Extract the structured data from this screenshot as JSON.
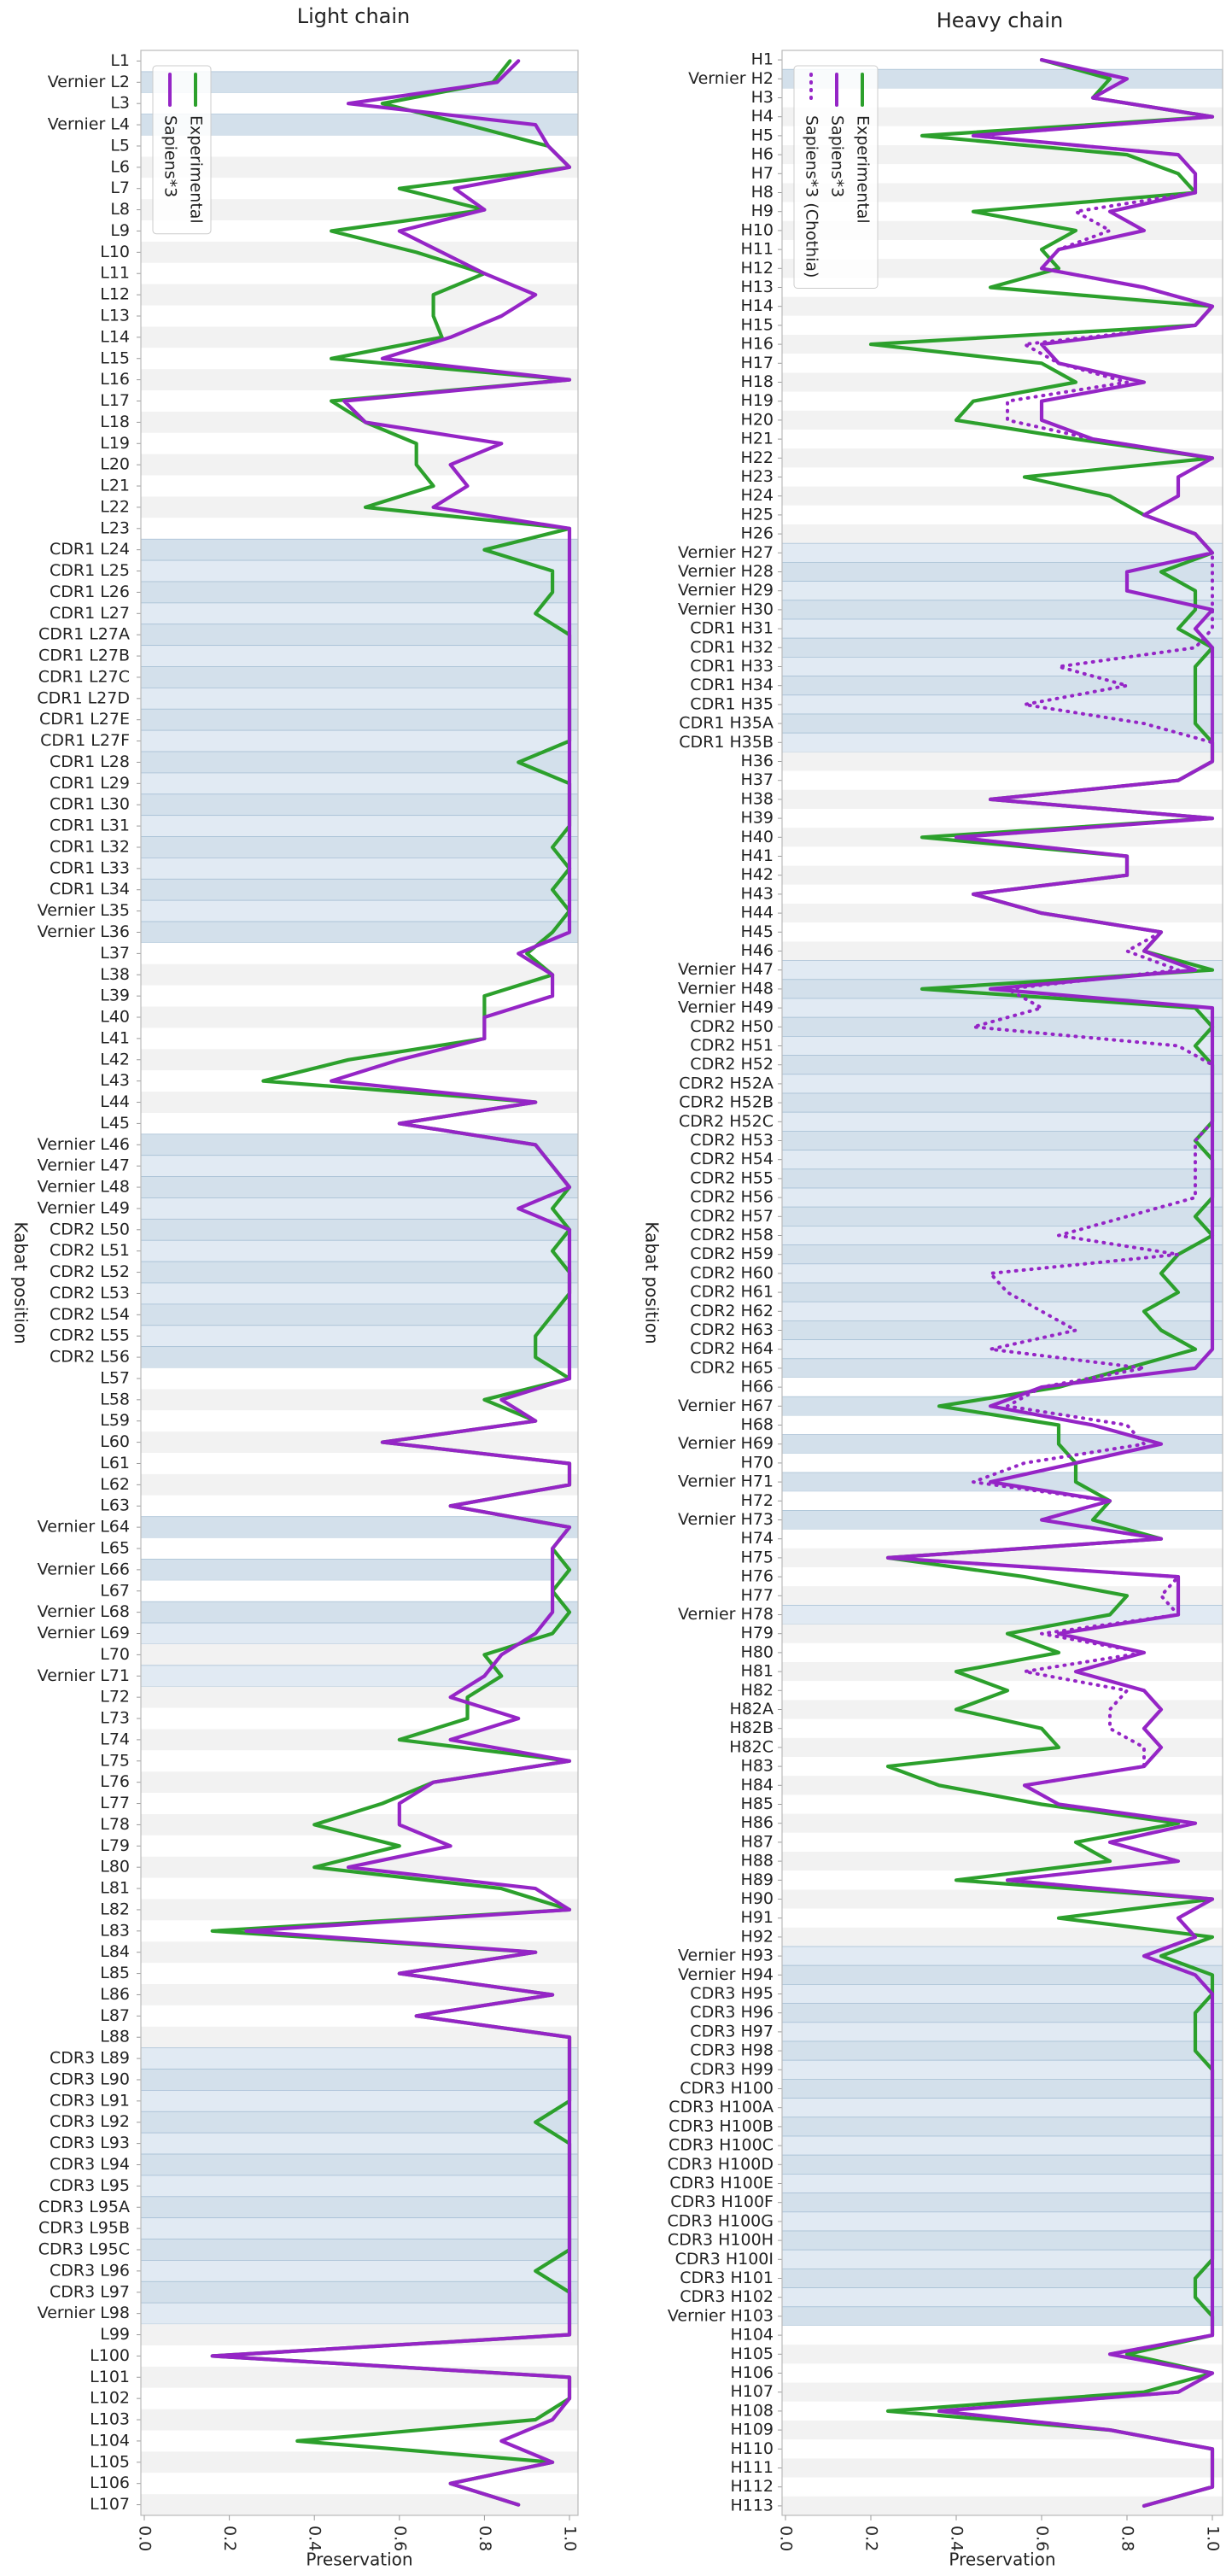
{
  "chart_data": [
    {
      "type": "line",
      "orientation": "horizontal",
      "title": "Light chain",
      "xlabel": "Preservation",
      "ylabel": "Kabat position",
      "xlim": [
        0,
        1
      ],
      "xticks": [
        {
          "value": 0,
          "label": "0.0"
        },
        0.2,
        0.4,
        0.6,
        0.8,
        {
          "value": 1,
          "label": "1.0"
        }
      ],
      "legend": "upper left",
      "categories": [
        "L1",
        "Vernier L2",
        "L3",
        "Vernier L4",
        "L5",
        "L6",
        "L7",
        "L8",
        "L9",
        "L10",
        "L11",
        "L12",
        "L13",
        "L14",
        "L15",
        "L16",
        "L17",
        "L18",
        "L19",
        "L20",
        "L21",
        "L22",
        "L23",
        "CDR1 L24",
        "CDR1 L25",
        "CDR1 L26",
        "CDR1 L27",
        "CDR1 L27A",
        "CDR1 L27B",
        "CDR1 L27C",
        "CDR1 L27D",
        "CDR1 L27E",
        "CDR1 L27F",
        "CDR1 L28",
        "CDR1 L29",
        "CDR1 L30",
        "CDR1 L31",
        "CDR1 L32",
        "CDR1 L33",
        "CDR1 L34",
        "Vernier L35",
        "Vernier L36",
        "L37",
        "L38",
        "L39",
        "L40",
        "L41",
        "L42",
        "L43",
        "L44",
        "L45",
        "Vernier L46",
        "Vernier L47",
        "Vernier L48",
        "Vernier L49",
        "CDR2 L50",
        "CDR2 L51",
        "CDR2 L52",
        "CDR2 L53",
        "CDR2 L54",
        "CDR2 L55",
        "CDR2 L56",
        "L57",
        "L58",
        "L59",
        "L60",
        "L61",
        "L62",
        "L63",
        "Vernier L64",
        "L65",
        "Vernier L66",
        "L67",
        "Vernier L68",
        "Vernier L69",
        "L70",
        "Vernier L71",
        "L72",
        "L73",
        "L74",
        "L75",
        "L76",
        "L77",
        "L78",
        "L79",
        "L80",
        "L81",
        "L82",
        "L83",
        "L84",
        "L85",
        "L86",
        "L87",
        "L88",
        "CDR3 L89",
        "CDR3 L90",
        "CDR3 L91",
        "CDR3 L92",
        "CDR3 L93",
        "CDR3 L94",
        "CDR3 L95",
        "CDR3 L95A",
        "CDR3 L95B",
        "CDR3 L95C",
        "CDR3 L96",
        "CDR3 L97",
        "Vernier L98",
        "L99",
        "L100",
        "L101",
        "L102",
        "L103",
        "L104",
        "L105",
        "L106",
        "L107"
      ],
      "series": [
        {
          "name": "Experimental",
          "color": "#2ca02c",
          "dash": "solid",
          "values": [
            0.86,
            0.82,
            0.56,
            0.76,
            0.95,
            1,
            0.6,
            0.8,
            0.44,
            0.64,
            0.8,
            0.68,
            0.68,
            0.7,
            0.44,
            1,
            0.44,
            0.52,
            0.64,
            0.64,
            0.68,
            0.52,
            1,
            0.8,
            0.96,
            0.96,
            0.92,
            1,
            1,
            1,
            1,
            1,
            1,
            0.88,
            1,
            1,
            1,
            0.96,
            1,
            0.96,
            1,
            0.96,
            0.9,
            0.96,
            0.8,
            0.8,
            0.8,
            0.48,
            0.28,
            0.92,
            0.6,
            0.92,
            0.96,
            1,
            0.96,
            1,
            0.96,
            1,
            1,
            0.96,
            0.92,
            0.92,
            1,
            0.8,
            0.92,
            0.56,
            1,
            1,
            0.72,
            1,
            0.96,
            1,
            0.96,
            1,
            0.96,
            0.8,
            0.84,
            0.76,
            0.76,
            0.6,
            1,
            0.68,
            0.56,
            0.4,
            0.6,
            0.4,
            0.84,
            1,
            0.16,
            0.92,
            0.6,
            0.96,
            0.64,
            1,
            1,
            1,
            1,
            0.92,
            1,
            1,
            1,
            1,
            1,
            1,
            0.92,
            1,
            1,
            1,
            0.16,
            1,
            1,
            0.92,
            0.36,
            0.96,
            0.72,
            0.88
          ]
        },
        {
          "name": "Sapiens*3",
          "color": "#9525c6",
          "dash": "solid",
          "values": [
            0.88,
            0.83,
            0.48,
            0.92,
            0.95,
            1,
            0.73,
            0.8,
            0.6,
            0.7,
            0.8,
            0.92,
            0.84,
            0.72,
            0.56,
            1,
            0.47,
            0.52,
            0.84,
            0.72,
            0.76,
            0.68,
            1,
            1,
            1,
            1,
            1,
            1,
            1,
            1,
            1,
            1,
            1,
            1,
            1,
            1,
            1,
            1,
            1,
            1,
            1,
            1,
            0.88,
            0.96,
            0.96,
            0.8,
            0.8,
            0.6,
            0.44,
            0.92,
            0.6,
            0.92,
            0.96,
            1,
            0.88,
            1,
            1,
            1,
            1,
            1,
            1,
            1,
            1,
            0.84,
            0.92,
            0.56,
            1,
            1,
            0.72,
            1,
            0.96,
            0.96,
            0.96,
            0.96,
            0.92,
            0.84,
            0.8,
            0.72,
            0.88,
            0.72,
            1,
            0.68,
            0.6,
            0.6,
            0.72,
            0.48,
            0.92,
            1,
            0.24,
            0.92,
            0.6,
            0.96,
            0.64,
            1,
            1,
            1,
            1,
            1,
            1,
            1,
            1,
            1,
            1,
            1,
            1,
            1,
            1,
            1,
            0.16,
            1,
            1,
            0.96,
            0.84,
            0.96,
            0.72,
            0.88
          ]
        }
      ]
    },
    {
      "type": "line",
      "orientation": "horizontal",
      "title": "Heavy chain",
      "xlabel": "Preservation",
      "ylabel": "Kabat position",
      "xlim": [
        0,
        1
      ],
      "xticks": [
        {
          "value": 0,
          "label": "0.0"
        },
        0.2,
        0.4,
        0.6,
        0.8,
        {
          "value": 1,
          "label": "1.0"
        }
      ],
      "legend": "upper left",
      "categories": [
        "H1",
        "Vernier H2",
        "H3",
        "H4",
        "H5",
        "H6",
        "H7",
        "H8",
        "H9",
        "H10",
        "H11",
        "H12",
        "H13",
        "H14",
        "H15",
        "H16",
        "H17",
        "H18",
        "H19",
        "H20",
        "H21",
        "H22",
        "H23",
        "H24",
        "H25",
        "H26",
        "Vernier H27",
        "Vernier H28",
        "Vernier H29",
        "Vernier H30",
        "CDR1 H31",
        "CDR1 H32",
        "CDR1 H33",
        "CDR1 H34",
        "CDR1 H35",
        "CDR1 H35A",
        "CDR1 H35B",
        "H36",
        "H37",
        "H38",
        "H39",
        "H40",
        "H41",
        "H42",
        "H43",
        "H44",
        "H45",
        "H46",
        "Vernier H47",
        "Vernier H48",
        "Vernier H49",
        "CDR2 H50",
        "CDR2 H51",
        "CDR2 H52",
        "CDR2 H52A",
        "CDR2 H52B",
        "CDR2 H52C",
        "CDR2 H53",
        "CDR2 H54",
        "CDR2 H55",
        "CDR2 H56",
        "CDR2 H57",
        "CDR2 H58",
        "CDR2 H59",
        "CDR2 H60",
        "CDR2 H61",
        "CDR2 H62",
        "CDR2 H63",
        "CDR2 H64",
        "CDR2 H65",
        "H66",
        "Vernier H67",
        "H68",
        "Vernier H69",
        "H70",
        "Vernier H71",
        "H72",
        "Vernier H73",
        "H74",
        "H75",
        "H76",
        "H77",
        "Vernier H78",
        "H79",
        "H80",
        "H81",
        "H82",
        "H82A",
        "H82B",
        "H82C",
        "H83",
        "H84",
        "H85",
        "H86",
        "H87",
        "H88",
        "H89",
        "H90",
        "H91",
        "H92",
        "Vernier H93",
        "Vernier H94",
        "CDR3 H95",
        "CDR3 H96",
        "CDR3 H97",
        "CDR3 H98",
        "CDR3 H99",
        "CDR3 H100",
        "CDR3 H100A",
        "CDR3 H100B",
        "CDR3 H100C",
        "CDR3 H100D",
        "CDR3 H100E",
        "CDR3 H100F",
        "CDR3 H100G",
        "CDR3 H100H",
        "CDR3 H100I",
        "CDR3 H101",
        "CDR3 H102",
        "Vernier H103",
        "H104",
        "H105",
        "H106",
        "H107",
        "H108",
        "H109",
        "H110",
        "H111",
        "H112",
        "H113"
      ],
      "series": [
        {
          "name": "Experimental",
          "color": "#2ca02c",
          "dash": "solid",
          "values": [
            0.6,
            0.76,
            0.72,
            1,
            0.32,
            0.8,
            0.92,
            0.96,
            0.44,
            0.68,
            0.6,
            0.64,
            0.48,
            1,
            0.96,
            0.2,
            0.6,
            0.68,
            0.44,
            0.4,
            0.68,
            1,
            0.56,
            0.76,
            0.84,
            0.96,
            1,
            0.88,
            0.96,
            0.96,
            0.92,
            1,
            0.96,
            0.96,
            0.96,
            0.96,
            1,
            1,
            0.92,
            0.48,
            1,
            0.32,
            0.8,
            0.8,
            0.44,
            0.6,
            0.88,
            0.84,
            1,
            0.32,
            0.96,
            1,
            0.96,
            1,
            1,
            1,
            1,
            0.96,
            1,
            1,
            1,
            0.96,
            1,
            0.92,
            0.88,
            0.92,
            0.84,
            0.88,
            0.96,
            0.8,
            0.64,
            0.36,
            0.64,
            0.64,
            0.68,
            0.68,
            0.76,
            0.72,
            0.88,
            0.24,
            0.56,
            0.8,
            0.76,
            0.52,
            0.64,
            0.4,
            0.52,
            0.4,
            0.6,
            0.64,
            0.24,
            0.36,
            0.6,
            0.92,
            0.68,
            0.76,
            0.4,
            1,
            0.64,
            1,
            0.88,
            1,
            1,
            0.96,
            0.96,
            0.96,
            1,
            1,
            1,
            1,
            1,
            1,
            1,
            1,
            1,
            1,
            1,
            0.96,
            0.96,
            1,
            1,
            0.8,
            1,
            0.84,
            0.24,
            0.76,
            1,
            1,
            1,
            0.84
          ]
        },
        {
          "name": "Sapiens*3",
          "color": "#9525c6",
          "dash": "solid",
          "values": [
            0.6,
            0.8,
            0.72,
            1,
            0.44,
            0.92,
            0.96,
            0.96,
            0.76,
            0.84,
            0.64,
            0.6,
            0.84,
            1,
            0.96,
            0.6,
            0.64,
            0.84,
            0.6,
            0.6,
            0.72,
            1,
            0.92,
            0.92,
            0.84,
            0.96,
            1,
            0.8,
            0.8,
            1,
            0.96,
            1,
            1,
            1,
            1,
            1,
            1,
            1,
            0.92,
            0.48,
            1,
            0.4,
            0.8,
            0.8,
            0.44,
            0.6,
            0.88,
            0.84,
            0.96,
            0.48,
            1,
            1,
            1,
            1,
            1,
            1,
            1,
            1,
            1,
            1,
            1,
            1,
            1,
            1,
            1,
            1,
            1,
            1,
            1,
            0.96,
            0.6,
            0.48,
            0.72,
            0.88,
            0.68,
            0.48,
            0.76,
            0.6,
            0.88,
            0.24,
            0.92,
            0.92,
            0.92,
            0.64,
            0.84,
            0.68,
            0.84,
            0.88,
            0.84,
            0.88,
            0.84,
            0.56,
            0.64,
            0.96,
            0.76,
            0.92,
            0.52,
            1,
            0.92,
            0.96,
            0.84,
            0.96,
            1,
            1,
            1,
            1,
            1,
            1,
            1,
            1,
            1,
            1,
            1,
            1,
            1,
            1,
            1,
            1,
            1,
            1,
            1,
            0.76,
            1,
            0.92,
            0.36,
            0.76,
            1,
            1,
            1,
            0.84
          ]
        },
        {
          "name": "Sapiens*3 (Chothia)",
          "color": "#9525c6",
          "dash": "dotted",
          "values": [
            0.6,
            0.8,
            0.72,
            1,
            0.44,
            0.92,
            0.96,
            0.96,
            0.68,
            0.76,
            0.64,
            0.6,
            0.84,
            1,
            0.96,
            0.56,
            0.64,
            0.8,
            0.52,
            0.52,
            0.72,
            1,
            0.92,
            0.92,
            0.84,
            0.96,
            1,
            1,
            1,
            1,
            1,
            0.96,
            0.64,
            0.8,
            0.56,
            0.84,
            1,
            1,
            0.92,
            0.48,
            1,
            0.4,
            0.8,
            0.8,
            0.44,
            0.6,
            0.88,
            0.8,
            0.92,
            0.52,
            0.6,
            0.44,
            0.92,
            1,
            1,
            1,
            1,
            0.96,
            0.96,
            0.96,
            0.96,
            0.8,
            0.64,
            0.92,
            0.48,
            0.52,
            0.6,
            0.68,
            0.48,
            0.84,
            0.6,
            0.52,
            0.8,
            0.84,
            0.56,
            0.44,
            0.76,
            0.6,
            0.88,
            0.24,
            0.92,
            0.88,
            0.92,
            0.6,
            0.84,
            0.56,
            0.8,
            0.76,
            0.76,
            0.84,
            0.84,
            0.56,
            0.64,
            0.96,
            0.76,
            0.92,
            0.52,
            1,
            0.92,
            0.96,
            0.84,
            0.96,
            1,
            1,
            1,
            1,
            1,
            1,
            1,
            1,
            1,
            1,
            1,
            1,
            1,
            1,
            1,
            1,
            1,
            1,
            1,
            0.76,
            1,
            0.92,
            0.36,
            0.76,
            1,
            1,
            1,
            0.84
          ]
        }
      ]
    }
  ]
}
